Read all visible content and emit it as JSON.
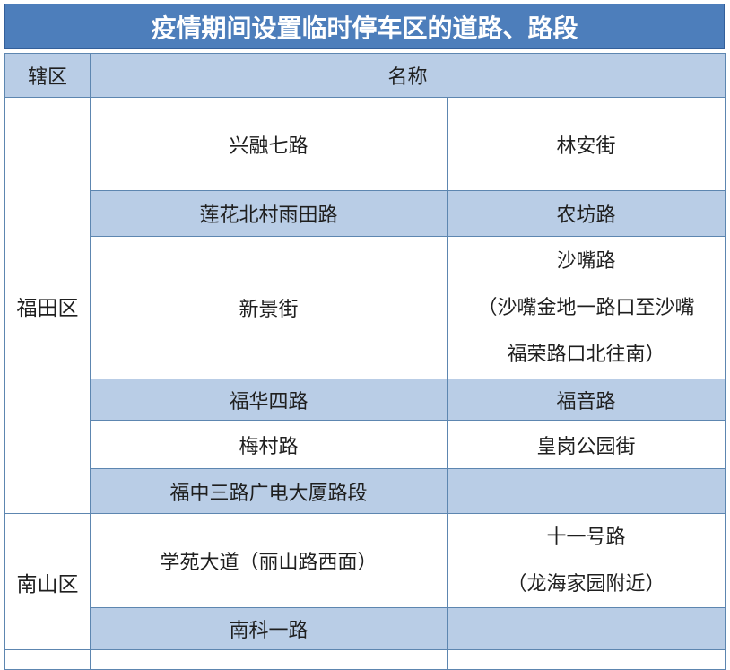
{
  "title": "疫情期间设置临时停车区的道路、路段",
  "header": {
    "district": "辖区",
    "name": "名称"
  },
  "sections": [
    {
      "district": "福田区",
      "rows": [
        {
          "left": "兴融七路",
          "right": "林安街"
        },
        {
          "left": "莲花北村雨田路",
          "right": "农坊路"
        },
        {
          "left": "新景街",
          "right": "沙嘴路\n（沙嘴金地一路口至沙嘴\n福荣路口北往南）"
        },
        {
          "left": "福华四路",
          "right": "福音路"
        },
        {
          "left": "梅村路",
          "right": "皇岗公园街"
        },
        {
          "left": "福中三路广电大厦路段",
          "right": ""
        }
      ]
    },
    {
      "district": "南山区",
      "rows": [
        {
          "left": "学苑大道（丽山路西面）",
          "right": "十一号路\n（龙海家园附近）"
        },
        {
          "left": "南科一路",
          "right": ""
        }
      ]
    }
  ],
  "colors": {
    "title_bg": "#4d7ebb",
    "title_text": "#ffffff",
    "stripe_bg": "#b9cde6",
    "border": "#5d86b0",
    "text": "#1f1f1f"
  }
}
